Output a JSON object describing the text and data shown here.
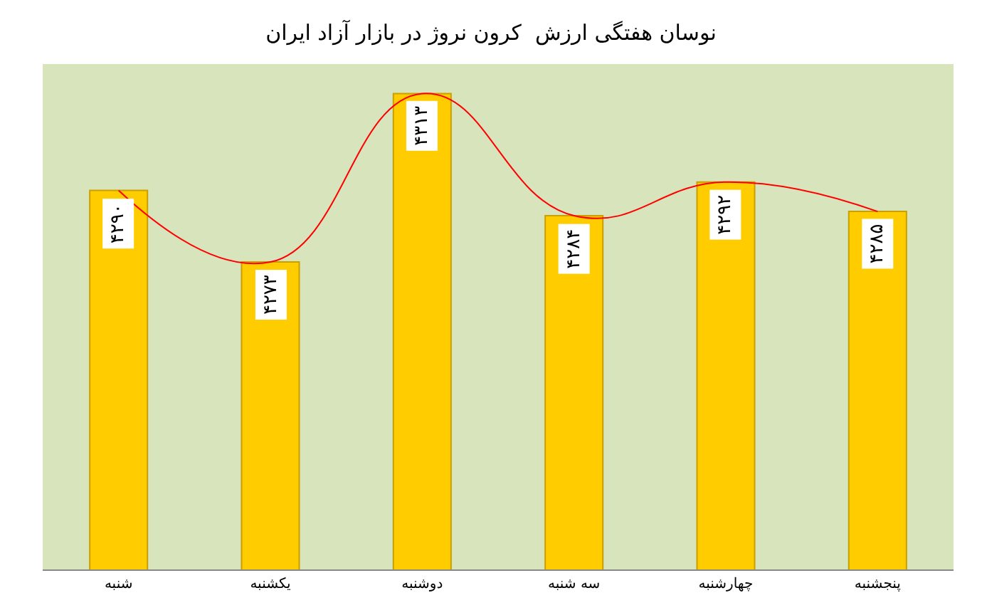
{
  "chart_data": {
    "type": "bar",
    "title": "نوسان هفتگی ارزش  کرون نروژ در بازار آزاد ایران",
    "categories": [
      "شنبه",
      "یکشنبه",
      "دوشنبه",
      "سه شنبه",
      "چهارشنبه",
      "پنجشنبه"
    ],
    "series": [
      {
        "color": "#ffcc00",
        "values": [
          4290,
          4273,
          4313,
          4284,
          4292,
          4285
        ],
        "value_labels": [
          "۴۲۹۰",
          "۴۲۷۳",
          "۴۳۱۳",
          "۴۲۸۴",
          "۴۲۹۲",
          "۴۲۸۵"
        ]
      },
      {
        "type": "line",
        "color": "#ff0000",
        "values": [
          4290,
          4273,
          4313,
          4284,
          4292,
          4285
        ]
      }
    ],
    "ylim": [
      4200,
      4320
    ],
    "tick_labels": "x",
    "grid": false,
    "marker": "none"
  }
}
